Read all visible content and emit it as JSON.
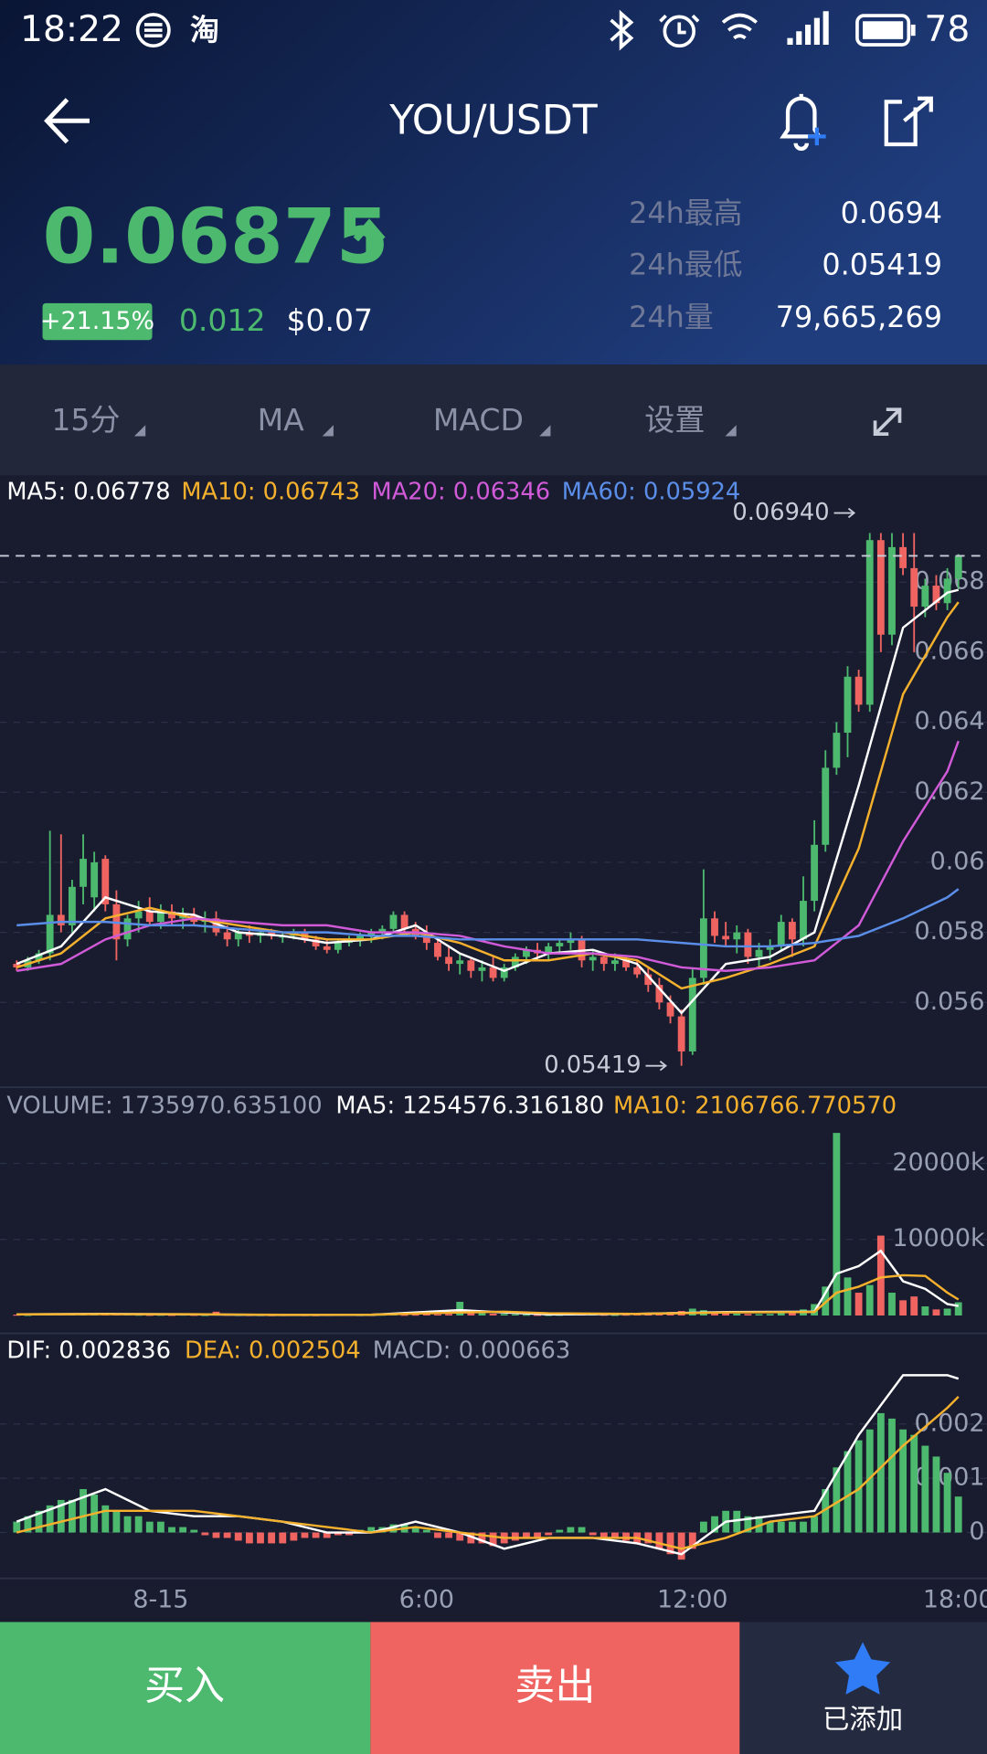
{
  "status_bar": {
    "time": "18:22",
    "app": "淘",
    "battery": "78"
  },
  "header": {
    "title": "YOU/USDT",
    "price": "0.06875",
    "change_percent": "+21.15%",
    "change": "0.012",
    "price_usd": "$0.07",
    "stats": [
      {
        "label": "24h最高",
        "value": "0.0694"
      },
      {
        "label": "24h最低",
        "value": "0.05419"
      },
      {
        "label": "24h量",
        "value": "79,665,269"
      }
    ]
  },
  "toolbar": [
    "15分",
    "MA",
    "MACD",
    "设置"
  ],
  "chart_data": {
    "type": "candlestick",
    "up_color": "#4cb96e",
    "down_color": "#ef6461",
    "categories": [
      null,
      null,
      null,
      null,
      null,
      null,
      null,
      null,
      null,
      null,
      null,
      null,
      null,
      "8-15",
      null,
      null,
      null,
      null,
      null,
      null,
      null,
      null,
      null,
      null,
      null,
      null,
      null,
      null,
      null,
      null,
      null,
      null,
      null,
      null,
      null,
      null,
      null,
      "6:00",
      null,
      null,
      null,
      null,
      null,
      null,
      null,
      null,
      null,
      null,
      null,
      null,
      null,
      null,
      null,
      null,
      null,
      null,
      null,
      null,
      null,
      null,
      null,
      "12:00",
      null,
      null,
      null,
      null,
      null,
      null,
      null,
      null,
      null,
      null,
      null,
      null,
      null,
      null,
      null,
      null,
      null,
      null,
      null,
      null,
      null,
      null,
      null,
      "18:00"
    ],
    "open": [
      0.0571,
      0.057,
      0.0572,
      0.0574,
      0.0585,
      0.0582,
      0.0593,
      0.059,
      0.0601,
      0.0588,
      0.0578,
      0.0584,
      0.0586,
      0.0583,
      0.0586,
      0.0584,
      0.0585,
      0.0583,
      0.0584,
      0.058,
      0.0578,
      0.058,
      0.0579,
      0.058,
      0.0579,
      0.0579,
      0.058,
      0.0578,
      0.0576,
      0.0575,
      0.0577,
      0.0578,
      0.0579,
      0.058,
      0.0581,
      0.0585,
      0.0581,
      0.0579,
      0.0577,
      0.0573,
      0.0571,
      0.0572,
      0.0569,
      0.057,
      0.0567,
      0.057,
      0.0573,
      0.0575,
      0.0574,
      0.0576,
      0.0577,
      0.0578,
      0.0572,
      0.0573,
      0.0571,
      0.0572,
      0.057,
      0.0568,
      0.0565,
      0.056,
      0.0556,
      0.0546,
      0.0567,
      0.0584,
      0.0579,
      0.0578,
      0.058,
      0.0573,
      0.0575,
      0.0576,
      0.0583,
      0.0578,
      0.0589,
      0.0605,
      0.0627,
      0.0637,
      0.0653,
      0.0645,
      0.0692,
      0.0665,
      0.069,
      0.0684,
      0.0673,
      0.0679,
      0.0674,
      0.0681
    ],
    "high": [
      0.0572,
      0.0573,
      0.0575,
      0.0609,
      0.0608,
      0.0595,
      0.0608,
      0.0603,
      0.0602,
      0.0592,
      0.0585,
      0.0589,
      0.059,
      0.0588,
      0.0588,
      0.0587,
      0.0587,
      0.0586,
      0.0586,
      0.0582,
      0.0581,
      0.0582,
      0.0581,
      0.0581,
      0.058,
      0.0581,
      0.0581,
      0.0579,
      0.0578,
      0.0578,
      0.0579,
      0.058,
      0.0581,
      0.0582,
      0.0586,
      0.0586,
      0.0583,
      0.0582,
      0.0578,
      0.0576,
      0.0574,
      0.0573,
      0.0572,
      0.0573,
      0.0571,
      0.0574,
      0.0576,
      0.0577,
      0.0577,
      0.0578,
      0.058,
      0.0579,
      0.0575,
      0.0574,
      0.0574,
      0.0573,
      0.0572,
      0.057,
      0.0567,
      0.0562,
      0.0558,
      0.057,
      0.0598,
      0.0586,
      0.0583,
      0.0582,
      0.0581,
      0.0577,
      0.0578,
      0.0585,
      0.0584,
      0.0596,
      0.0612,
      0.0632,
      0.064,
      0.0656,
      0.0655,
      0.0694,
      0.0694,
      0.0694,
      0.0694,
      0.0694,
      0.0681,
      0.0682,
      0.0684,
      0.0688
    ],
    "low": [
      0.0569,
      0.0569,
      0.0571,
      0.0572,
      0.058,
      0.058,
      0.0588,
      0.0586,
      0.0586,
      0.0572,
      0.0576,
      0.058,
      0.0582,
      0.0581,
      0.0582,
      0.0581,
      0.0582,
      0.058,
      0.0579,
      0.0576,
      0.0576,
      0.0577,
      0.0577,
      0.0578,
      0.0577,
      0.0578,
      0.0577,
      0.0575,
      0.0574,
      0.0574,
      0.0576,
      0.0576,
      0.0577,
      0.0578,
      0.058,
      0.058,
      0.0578,
      0.0575,
      0.0572,
      0.0569,
      0.0568,
      0.0567,
      0.0566,
      0.0566,
      0.0566,
      0.0569,
      0.0571,
      0.0572,
      0.0572,
      0.0574,
      0.0575,
      0.057,
      0.0569,
      0.0569,
      0.0569,
      0.0569,
      0.0567,
      0.0563,
      0.0558,
      0.0554,
      0.05419,
      0.0545,
      0.0565,
      0.0577,
      0.0576,
      0.0574,
      0.0571,
      0.057,
      0.0572,
      0.0575,
      0.0573,
      0.0576,
      0.0586,
      0.0603,
      0.0625,
      0.063,
      0.0643,
      0.0643,
      0.066,
      0.0662,
      0.0682,
      0.066,
      0.067,
      0.0672,
      0.0672,
      0.0678
    ],
    "close": [
      0.057,
      0.0572,
      0.0574,
      0.0585,
      0.0582,
      0.0593,
      0.0601,
      0.06,
      0.0588,
      0.0578,
      0.0584,
      0.0586,
      0.0583,
      0.0586,
      0.0584,
      0.0585,
      0.0583,
      0.0584,
      0.058,
      0.0578,
      0.058,
      0.0579,
      0.058,
      0.0579,
      0.0579,
      0.058,
      0.0578,
      0.0576,
      0.0575,
      0.0577,
      0.0578,
      0.0579,
      0.058,
      0.0581,
      0.0585,
      0.0581,
      0.0579,
      0.0577,
      0.0573,
      0.0571,
      0.0572,
      0.0569,
      0.057,
      0.0567,
      0.057,
      0.0573,
      0.0575,
      0.0574,
      0.0576,
      0.0577,
      0.0578,
      0.0572,
      0.0573,
      0.0571,
      0.0572,
      0.057,
      0.0568,
      0.0565,
      0.056,
      0.0556,
      0.0546,
      0.0567,
      0.0584,
      0.0579,
      0.0578,
      0.058,
      0.0573,
      0.0575,
      0.0576,
      0.0583,
      0.0578,
      0.0589,
      0.0605,
      0.0627,
      0.0637,
      0.0653,
      0.0645,
      0.0692,
      0.0665,
      0.069,
      0.0684,
      0.0673,
      0.0679,
      0.0674,
      0.0681,
      0.06875
    ],
    "ylim": [
      0.05364,
      0.06961
    ],
    "yticks": [
      0.056,
      0.058,
      0.06,
      0.062,
      0.064,
      0.066,
      0.068
    ],
    "grid": true,
    "annotations": [
      {
        "value": 0.0694,
        "label": "0.06940"
      },
      {
        "value": 0.05419,
        "label": "0.05419"
      }
    ],
    "series": [
      {
        "label": "MA5: 0.06778",
        "color": "#ffffff",
        "x": [
          0,
          4,
          8,
          12,
          16,
          20,
          24,
          28,
          32,
          36,
          40,
          44,
          48,
          52,
          56,
          60,
          64,
          68,
          72,
          76,
          80,
          84,
          85
        ],
        "values": [
          0.0571,
          0.0576,
          0.059,
          0.0586,
          0.0585,
          0.058,
          0.0579,
          0.0577,
          0.0578,
          0.0582,
          0.0574,
          0.0569,
          0.0574,
          0.0575,
          0.0571,
          0.0557,
          0.0571,
          0.0573,
          0.058,
          0.0622,
          0.0667,
          0.0677,
          0.06778
        ]
      },
      {
        "label": "MA10: 0.06743",
        "color": "#f5b12d",
        "x": [
          0,
          4,
          8,
          12,
          16,
          20,
          24,
          28,
          32,
          36,
          40,
          44,
          48,
          52,
          56,
          60,
          64,
          68,
          72,
          76,
          80,
          84,
          85
        ],
        "values": [
          0.057,
          0.0574,
          0.0584,
          0.0587,
          0.0584,
          0.0582,
          0.058,
          0.0578,
          0.0578,
          0.058,
          0.0577,
          0.0572,
          0.0572,
          0.0574,
          0.0572,
          0.0564,
          0.0567,
          0.0571,
          0.0576,
          0.0604,
          0.0648,
          0.067,
          0.06743
        ]
      },
      {
        "label": "MA20: 0.06346",
        "color": "#d05ad8",
        "x": [
          0,
          4,
          8,
          12,
          16,
          20,
          24,
          28,
          32,
          36,
          40,
          44,
          48,
          52,
          56,
          60,
          64,
          68,
          72,
          76,
          80,
          84,
          85
        ],
        "values": [
          0.0569,
          0.0571,
          0.0578,
          0.0582,
          0.0584,
          0.0583,
          0.0582,
          0.0582,
          0.058,
          0.058,
          0.0579,
          0.0576,
          0.0574,
          0.0574,
          0.0573,
          0.057,
          0.0569,
          0.057,
          0.0572,
          0.0582,
          0.0606,
          0.0626,
          0.06346
        ]
      },
      {
        "label": "MA60: 0.05924",
        "color": "#5b8ee8",
        "x": [
          0,
          4,
          8,
          12,
          16,
          20,
          24,
          28,
          32,
          36,
          40,
          44,
          48,
          52,
          56,
          60,
          64,
          68,
          72,
          76,
          80,
          84,
          85
        ],
        "values": [
          0.0582,
          0.0583,
          0.0583,
          0.0582,
          0.0582,
          0.0581,
          0.058,
          0.058,
          0.0579,
          0.0579,
          0.0578,
          0.0578,
          0.0578,
          0.0578,
          0.0578,
          0.0577,
          0.0576,
          0.0576,
          0.0577,
          0.0579,
          0.0584,
          0.059,
          0.05924
        ]
      }
    ],
    "volume": {
      "type": "bar",
      "label": "VOLUME: 1735970.635100",
      "values": [
        120000,
        90000,
        150000,
        300000,
        250000,
        200000,
        280000,
        180000,
        220000,
        260000,
        150000,
        120000,
        100000,
        110000,
        90000,
        130000,
        100000,
        80000,
        500000,
        120000,
        90000,
        80000,
        70000,
        60000,
        80000,
        90000,
        70000,
        60000,
        80000,
        90000,
        100000,
        70000,
        80000,
        120000,
        150000,
        110000,
        130000,
        180000,
        150000,
        200000,
        1800000,
        600000,
        300000,
        250000,
        200000,
        150000,
        120000,
        100000,
        90000,
        110000,
        150000,
        300000,
        150000,
        120000,
        100000,
        130000,
        150000,
        200000,
        350000,
        450000,
        600000,
        900000,
        700000,
        400000,
        300000,
        250000,
        200000,
        180000,
        200000,
        300000,
        400000,
        800000,
        1500000,
        3800000,
        24000000,
        5000000,
        3000000,
        4000000,
        10500000,
        3000000,
        2000000,
        2500000,
        1200000,
        800000,
        900000,
        1735970.6351
      ],
      "ylim": [
        0,
        25880000
      ],
      "yticks": [
        {
          "value": 20000000,
          "label": "20000k"
        },
        {
          "value": 10000000,
          "label": "10000k"
        }
      ],
      "series": [
        {
          "label": "MA5: 1254576.316180",
          "color": "#ffffff",
          "x": [
            0,
            8,
            16,
            24,
            32,
            40,
            44,
            48,
            56,
            64,
            72,
            74,
            76,
            78,
            80,
            82,
            84,
            85
          ],
          "values": [
            150000,
            200000,
            150000,
            80000,
            90000,
            700000,
            400000,
            150000,
            200000,
            450000,
            500000,
            5500000,
            6500000,
            8500000,
            4500000,
            3500000,
            1500000,
            1254576.31618
          ]
        },
        {
          "label": "MA10: 2106766.770570",
          "color": "#f5b12d",
          "x": [
            0,
            8,
            16,
            24,
            32,
            40,
            44,
            48,
            56,
            64,
            72,
            74,
            76,
            78,
            80,
            82,
            84,
            85
          ],
          "values": [
            140000,
            180000,
            160000,
            90000,
            100000,
            400000,
            500000,
            300000,
            200000,
            400000,
            450000,
            3000000,
            3800000,
            5000000,
            5300000,
            5200000,
            3000000,
            2106766.77057
          ]
        }
      ]
    },
    "macd": {
      "type": "bar",
      "label": "MACD: 0.000663",
      "values": [
        0.0002,
        0.0003,
        0.0004,
        0.0005,
        0.0006,
        0.0006,
        0.0008,
        0.0007,
        0.0005,
        0.0004,
        0.0003,
        0.0003,
        0.0002,
        0.0002,
        0.0001,
        0.0001,
        5e-05,
        -5e-05,
        -0.0001,
        -0.0001,
        -0.00015,
        -0.0002,
        -0.0002,
        -0.0002,
        -0.0002,
        -0.00015,
        -0.0001,
        -0.0001,
        -0.0001,
        -5e-05,
        -5e-05,
        5e-05,
        0.0001,
        0.0001,
        0.00015,
        0.00015,
        0.0001,
        5e-05,
        -0.0001,
        -0.0001,
        -0.00015,
        -0.0002,
        -0.0002,
        -0.00025,
        -0.0002,
        -0.00015,
        -0.0001,
        -0.0001,
        -5e-05,
        5e-05,
        0.0001,
        0.0001,
        -5e-05,
        -0.0001,
        -0.0001,
        -0.00015,
        -0.0002,
        -0.0002,
        -0.0003,
        -0.0004,
        -0.0005,
        -0.0003,
        0.0002,
        0.0003,
        0.0004,
        0.0004,
        0.0003,
        0.0003,
        0.0002,
        0.0002,
        0.0002,
        0.0002,
        0.0003,
        0.0008,
        0.0012,
        0.0015,
        0.0017,
        0.0019,
        0.0022,
        0.0021,
        0.0019,
        0.0018,
        0.0016,
        0.0014,
        0.0011,
        0.000663
      ],
      "ylim": [
        -0.000825,
        0.00299
      ],
      "yticks": [
        0.002,
        0.001,
        0
      ],
      "series": [
        {
          "label": "DIF: 0.002836",
          "color": "#ffffff",
          "x": [
            0,
            4,
            8,
            12,
            16,
            20,
            24,
            28,
            32,
            36,
            40,
            44,
            48,
            52,
            56,
            60,
            64,
            68,
            72,
            76,
            80,
            84,
            85
          ],
          "values": [
            0.0002,
            0.0005,
            0.0008,
            0.0004,
            0.0003,
            0.0003,
            0.0002,
            0,
            0,
            0.0002,
            0,
            -0.0003,
            -0.0001,
            -0.0001,
            -0.0002,
            -0.0004,
            0.0002,
            0.0003,
            0.0004,
            0.0018,
            0.0029,
            0.0029,
            0.002836
          ]
        },
        {
          "label": "DEA: 0.002504",
          "color": "#f5b12d",
          "x": [
            0,
            4,
            8,
            12,
            16,
            20,
            24,
            28,
            32,
            36,
            40,
            44,
            48,
            52,
            56,
            60,
            64,
            68,
            72,
            76,
            80,
            84,
            85
          ],
          "values": [
            0,
            0.0002,
            0.0004,
            0.0004,
            0.0004,
            0.0003,
            0.0002,
            0.0001,
            0,
            0.0001,
            0,
            -0.0001,
            -0.0001,
            -0.0001,
            -0.0001,
            -0.0003,
            -0.0001,
            0.0002,
            0.0003,
            0.0008,
            0.0016,
            0.0023,
            0.002504
          ]
        }
      ]
    }
  },
  "buttons": {
    "buy": "买入",
    "sell": "卖出",
    "favorite": "已添加"
  }
}
